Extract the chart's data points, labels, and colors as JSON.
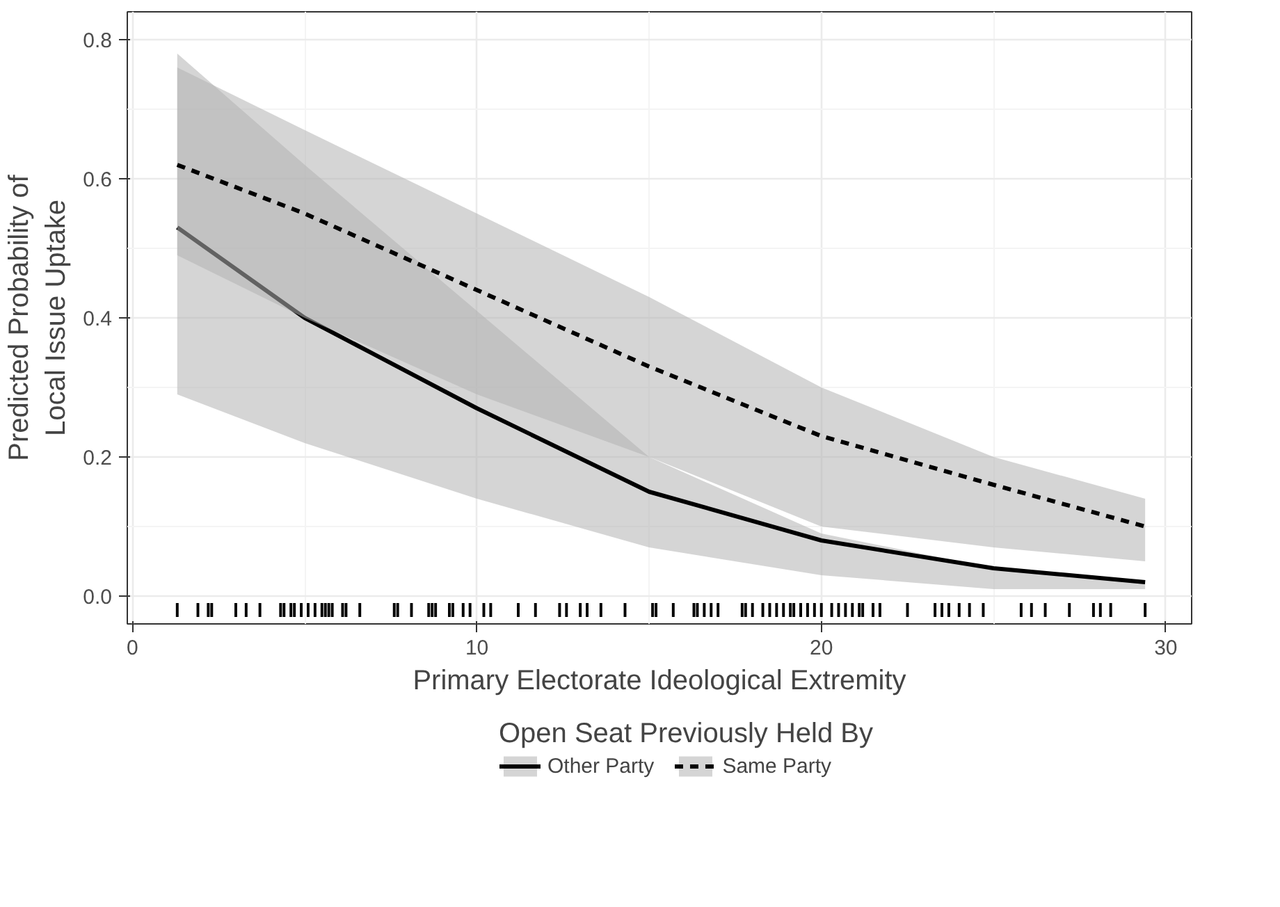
{
  "chart_data": {
    "type": "line",
    "xlabel": "Primary Electorate Ideological Extremity",
    "ylabel": "Predicted Probability of\nLocal Issue Uptake",
    "legend_title": "Open Seat Previously Held By",
    "legend": "bottom",
    "grid": true,
    "xlim": [
      -0.15,
      30.75
    ],
    "ylim": [
      -0.04,
      0.84
    ],
    "xticks": [
      0,
      10,
      20,
      30
    ],
    "yticks": [
      {
        "value": 0,
        "label": "0.0"
      },
      {
        "value": 0.2,
        "label": "0.2"
      },
      {
        "value": 0.4,
        "label": "0.4"
      },
      {
        "value": 0.6,
        "label": "0.6"
      },
      {
        "value": 0.8,
        "label": "0.8"
      }
    ],
    "series": [
      {
        "name": "Other Party",
        "color": "#000000",
        "line_style": "solid",
        "x": [
          1.3,
          5,
          10,
          15,
          20,
          25,
          29.4
        ],
        "values": [
          0.53,
          0.4,
          0.27,
          0.15,
          0.08,
          0.04,
          0.02
        ],
        "lower": [
          0.29,
          0.22,
          0.14,
          0.07,
          0.03,
          0.01,
          0.01
        ],
        "upper": [
          0.78,
          0.62,
          0.41,
          0.2,
          0.09,
          0.04,
          0.02
        ]
      },
      {
        "name": "Same Party",
        "color": "#000000",
        "line_style": "dashed",
        "x": [
          1.3,
          5,
          10,
          15,
          20,
          25,
          29.4
        ],
        "values": [
          0.62,
          0.55,
          0.44,
          0.33,
          0.23,
          0.16,
          0.1
        ],
        "lower": [
          0.49,
          0.4,
          0.29,
          0.2,
          0.1,
          0.07,
          0.05
        ],
        "upper": [
          0.76,
          0.67,
          0.55,
          0.43,
          0.3,
          0.2,
          0.14
        ]
      },
      {
        "type": "bar",
        "color": "#000000",
        "x": [
          1.3,
          1.9,
          2.2,
          2.3,
          3.0,
          3.3,
          3.7,
          4.3,
          4.4,
          4.6,
          4.7,
          4.9,
          5.1,
          5.3,
          5.5,
          5.6,
          5.7,
          5.8,
          6.1,
          6.2,
          6.6,
          7.6,
          7.7,
          8.1,
          8.6,
          8.7,
          8.8,
          9.2,
          9.3,
          9.6,
          9.8,
          10.2,
          10.4,
          11.2,
          11.7,
          12.4,
          12.6,
          13.0,
          13.2,
          13.6,
          14.3,
          15.1,
          15.2,
          15.7,
          16.3,
          16.4,
          16.6,
          16.8,
          17.0,
          17.7,
          17.8,
          18.0,
          18.3,
          18.5,
          18.7,
          18.9,
          19.1,
          19.2,
          19.4,
          19.6,
          19.8,
          20.0,
          20.3,
          20.5,
          20.7,
          20.9,
          21.1,
          21.2,
          21.5,
          21.7,
          22.5,
          23.3,
          23.5,
          23.7,
          24.0,
          24.3,
          24.7,
          25.8,
          26.1,
          26.5,
          27.2,
          27.9,
          28.1,
          28.4,
          29.4
        ],
        "base": [
          -0.03,
          -0.03,
          -0.03,
          -0.03,
          -0.03,
          -0.03,
          -0.03,
          -0.03,
          -0.03,
          -0.03,
          -0.03,
          -0.03,
          -0.03,
          -0.03,
          -0.03,
          -0.03,
          -0.03,
          -0.03,
          -0.03,
          -0.03,
          -0.03,
          -0.03,
          -0.03,
          -0.03,
          -0.03,
          -0.03,
          -0.03,
          -0.03,
          -0.03,
          -0.03,
          -0.03,
          -0.03,
          -0.03,
          -0.03,
          -0.03,
          -0.03,
          -0.03,
          -0.03,
          -0.03,
          -0.03,
          -0.03,
          -0.03,
          -0.03,
          -0.03,
          -0.03,
          -0.03,
          -0.03,
          -0.03,
          -0.03,
          -0.03,
          -0.03,
          -0.03,
          -0.03,
          -0.03,
          -0.03,
          -0.03,
          -0.03,
          -0.03,
          -0.03,
          -0.03,
          -0.03,
          -0.03,
          -0.03,
          -0.03,
          -0.03,
          -0.03,
          -0.03,
          -0.03,
          -0.03,
          -0.03,
          -0.03,
          -0.03,
          -0.03,
          -0.03,
          -0.03,
          -0.03,
          -0.03,
          -0.03,
          -0.03,
          -0.03,
          -0.03,
          -0.03,
          -0.03,
          -0.03,
          -0.03
        ],
        "values": [
          0.02,
          0.02,
          0.02,
          0.02,
          0.02,
          0.02,
          0.02,
          0.02,
          0.02,
          0.02,
          0.02,
          0.02,
          0.02,
          0.02,
          0.02,
          0.02,
          0.02,
          0.02,
          0.02,
          0.02,
          0.02,
          0.02,
          0.02,
          0.02,
          0.02,
          0.02,
          0.02,
          0.02,
          0.02,
          0.02,
          0.02,
          0.02,
          0.02,
          0.02,
          0.02,
          0.02,
          0.02,
          0.02,
          0.02,
          0.02,
          0.02,
          0.02,
          0.02,
          0.02,
          0.02,
          0.02,
          0.02,
          0.02,
          0.02,
          0.02,
          0.02,
          0.02,
          0.02,
          0.02,
          0.02,
          0.02,
          0.02,
          0.02,
          0.02,
          0.02,
          0.02,
          0.02,
          0.02,
          0.02,
          0.02,
          0.02,
          0.02,
          0.02,
          0.02,
          0.02,
          0.02,
          0.02,
          0.02,
          0.02,
          0.02,
          0.02,
          0.02,
          0.02,
          0.02,
          0.02,
          0.02,
          0.02,
          0.02,
          0.02,
          0.02
        ]
      }
    ]
  }
}
